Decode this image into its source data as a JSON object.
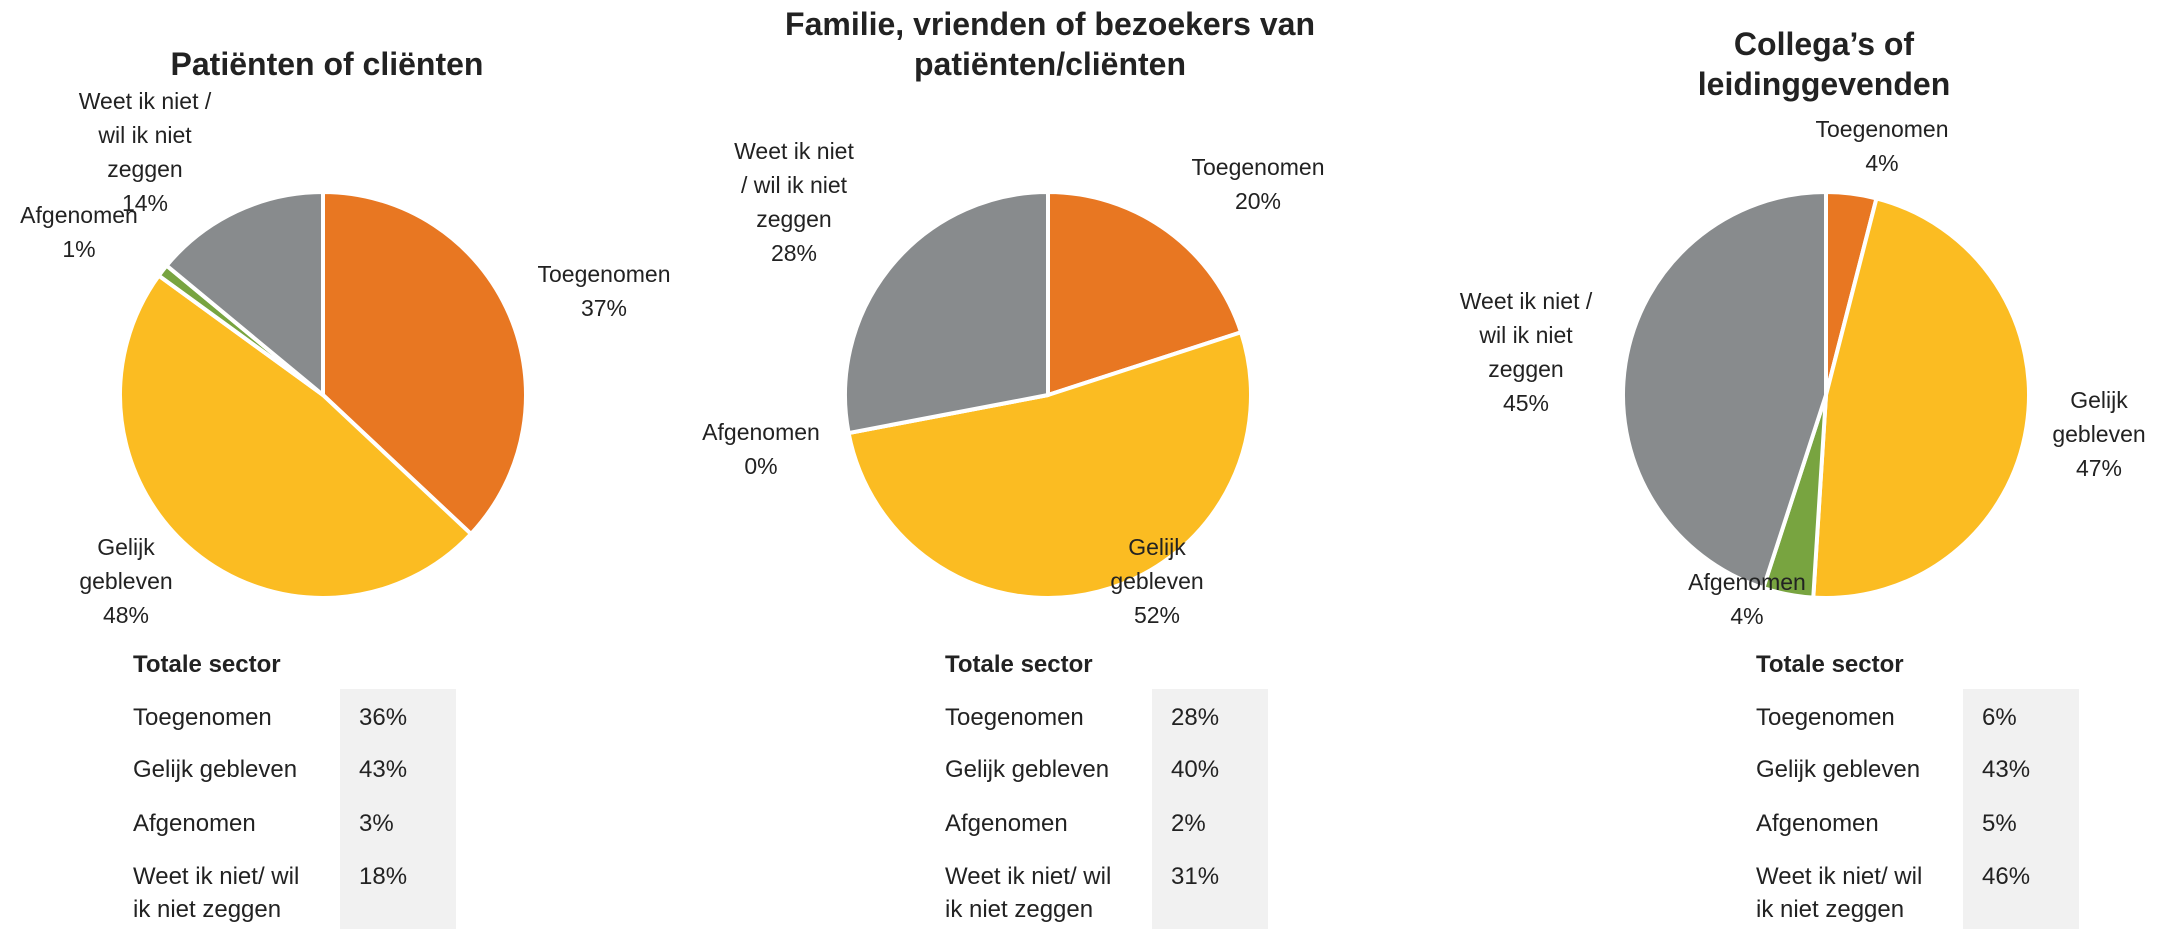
{
  "chart_data": [
    {
      "type": "pie",
      "title": "Patiënten of cliënten",
      "categories": [
        "Toegenomen",
        "Gelijk\ngebleven",
        "Afgenomen",
        "Weet ik niet /\nwil ik niet\nzeggen"
      ],
      "values": [
        37,
        48,
        1,
        14
      ],
      "value_labels": [
        "37%",
        "48%",
        "1%",
        "14%"
      ],
      "colors": [
        "#e87722",
        "#fbbc22",
        "#78a440",
        "#888b8d"
      ],
      "table": {
        "title": "Totale sector",
        "rows": [
          [
            "Toegenomen",
            "36%"
          ],
          [
            "Gelijk gebleven",
            "43%"
          ],
          [
            "Afgenomen",
            "3%"
          ],
          [
            "Weet ik niet/ wil\nik niet zeggen",
            "18%"
          ]
        ]
      }
    },
    {
      "type": "pie",
      "title": "Familie, vrienden of bezoekers van\npatiënten/cliënten",
      "categories": [
        "Toegenomen",
        "Gelijk\ngebleven",
        "Afgenomen",
        "Weet ik niet\n/ wil ik niet\nzeggen"
      ],
      "values": [
        20,
        52,
        0,
        28
      ],
      "value_labels": [
        "20%",
        "52%",
        "0%",
        "28%"
      ],
      "colors": [
        "#e87722",
        "#fbbc22",
        "#78a440",
        "#888b8d"
      ],
      "table": {
        "title": "Totale sector",
        "rows": [
          [
            "Toegenomen",
            "28%"
          ],
          [
            "Gelijk gebleven",
            "40%"
          ],
          [
            "Afgenomen",
            "2%"
          ],
          [
            "Weet ik niet/ wil\nik niet zeggen",
            "31%"
          ]
        ]
      }
    },
    {
      "type": "pie",
      "title": "Collega’s of leidinggevenden",
      "categories": [
        "Toegenomen",
        "Gelijk\ngebleven",
        "Afgenomen",
        "Weet ik niet /\nwil ik niet\nzeggen"
      ],
      "values": [
        4,
        47,
        4,
        45
      ],
      "value_labels": [
        "4%",
        "47%",
        "4%",
        "45%"
      ],
      "colors": [
        "#e87722",
        "#fbbc22",
        "#78a440",
        "#888b8d"
      ],
      "table": {
        "title": "Totale sector",
        "rows": [
          [
            "Toegenomen",
            "6%"
          ],
          [
            "Gelijk gebleven",
            "43%"
          ],
          [
            "Afgenomen",
            "5%"
          ],
          [
            "Weet ik niet/ wil\nik niet zeggen",
            "46%"
          ]
        ]
      }
    }
  ]
}
